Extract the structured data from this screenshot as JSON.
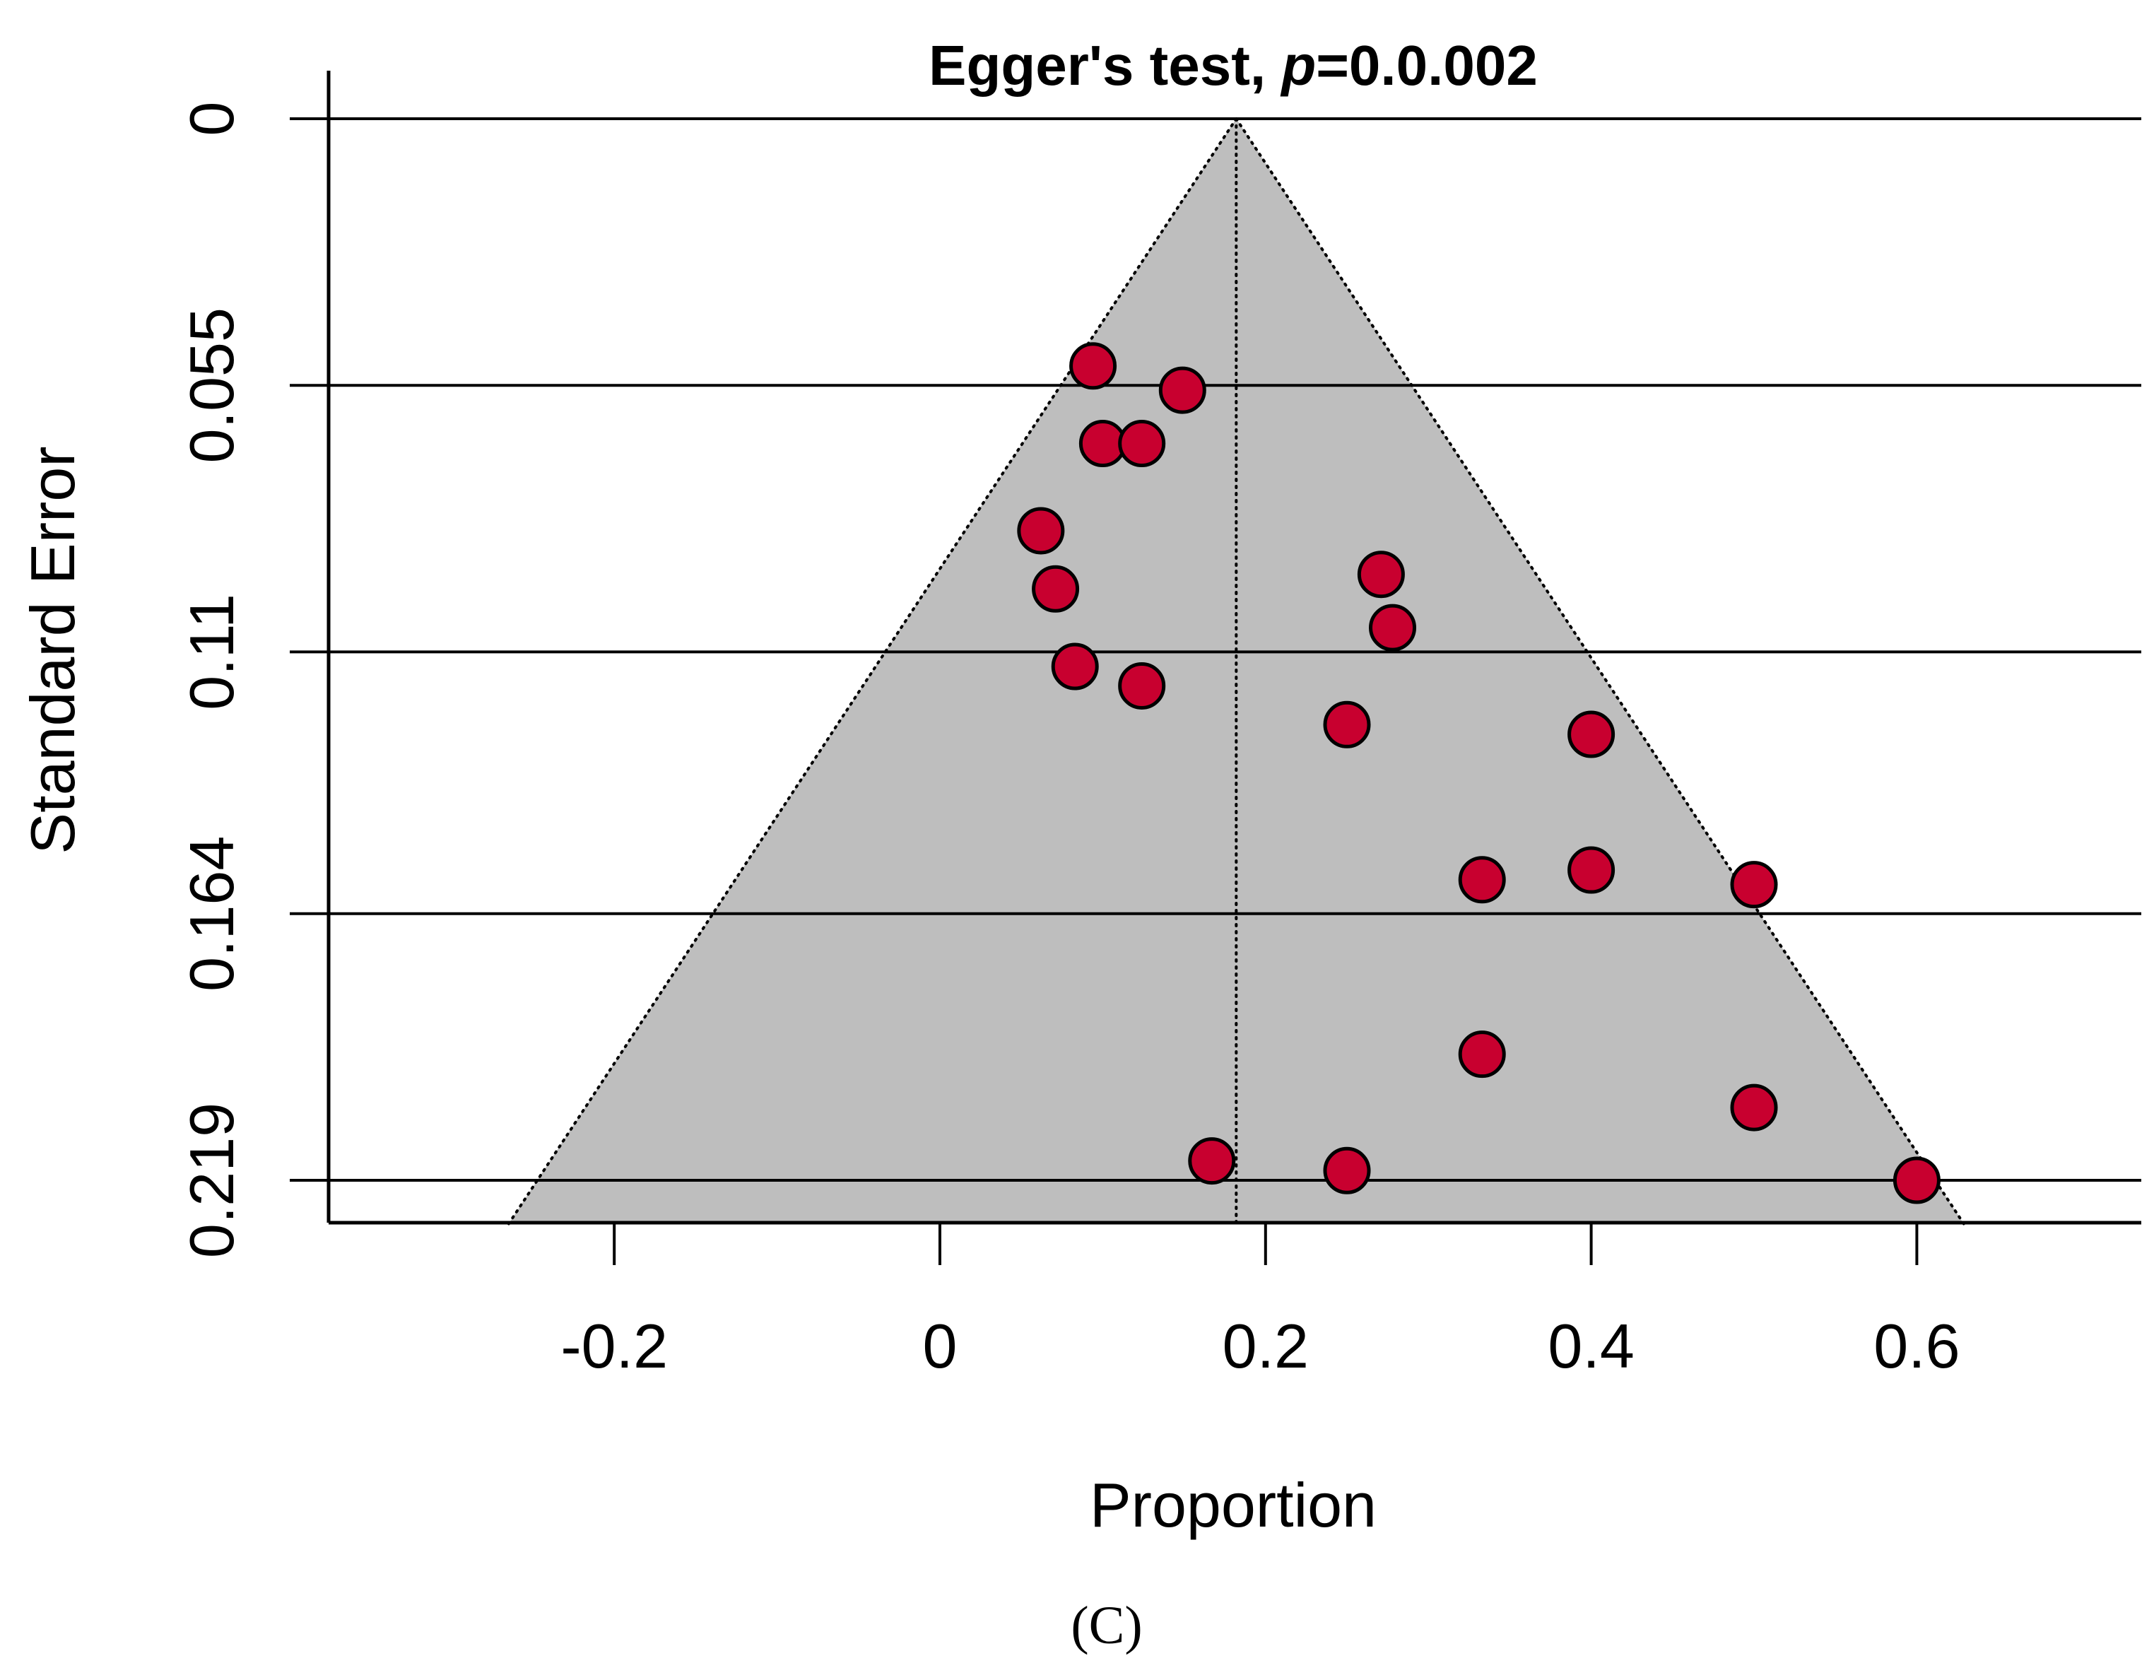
{
  "chart_data": {
    "type": "scatter",
    "title_prefix": "Egger's test, ",
    "title_italic": "p",
    "title_suffix": "=0.0.002",
    "xlabel": "Proportion",
    "ylabel": "Standard Error",
    "caption": "(C)",
    "xlim": [
      -0.375,
      0.74
    ],
    "ylim_reversed": [
      0,
      0.228
    ],
    "y_ticks": [
      0,
      0.055,
      0.11,
      0.164,
      0.219
    ],
    "y_tick_labels": [
      "0",
      "0.055",
      "0.11",
      "0.164",
      "0.219"
    ],
    "x_ticks": [
      -0.2,
      0,
      0.2,
      0.4,
      0.6
    ],
    "x_tick_labels": [
      "-0.2",
      "0",
      "0.2",
      "0.4",
      "0.6"
    ],
    "grid": "horizontal",
    "pooled_estimate": 0.182,
    "funnel_color": "#bebebe",
    "point_color": "#c8002f",
    "points": [
      {
        "x": 0.094,
        "y": 0.051
      },
      {
        "x": 0.149,
        "y": 0.056
      },
      {
        "x": 0.1,
        "y": 0.067
      },
      {
        "x": 0.124,
        "y": 0.067
      },
      {
        "x": 0.062,
        "y": 0.085
      },
      {
        "x": 0.071,
        "y": 0.097
      },
      {
        "x": 0.271,
        "y": 0.094
      },
      {
        "x": 0.278,
        "y": 0.105
      },
      {
        "x": 0.083,
        "y": 0.113
      },
      {
        "x": 0.124,
        "y": 0.117
      },
      {
        "x": 0.25,
        "y": 0.125
      },
      {
        "x": 0.4,
        "y": 0.127
      },
      {
        "x": 0.333,
        "y": 0.157
      },
      {
        "x": 0.4,
        "y": 0.155
      },
      {
        "x": 0.5,
        "y": 0.158
      },
      {
        "x": 0.333,
        "y": 0.193
      },
      {
        "x": 0.5,
        "y": 0.204
      },
      {
        "x": 0.167,
        "y": 0.215
      },
      {
        "x": 0.25,
        "y": 0.217
      },
      {
        "x": 0.6,
        "y": 0.219
      }
    ]
  }
}
